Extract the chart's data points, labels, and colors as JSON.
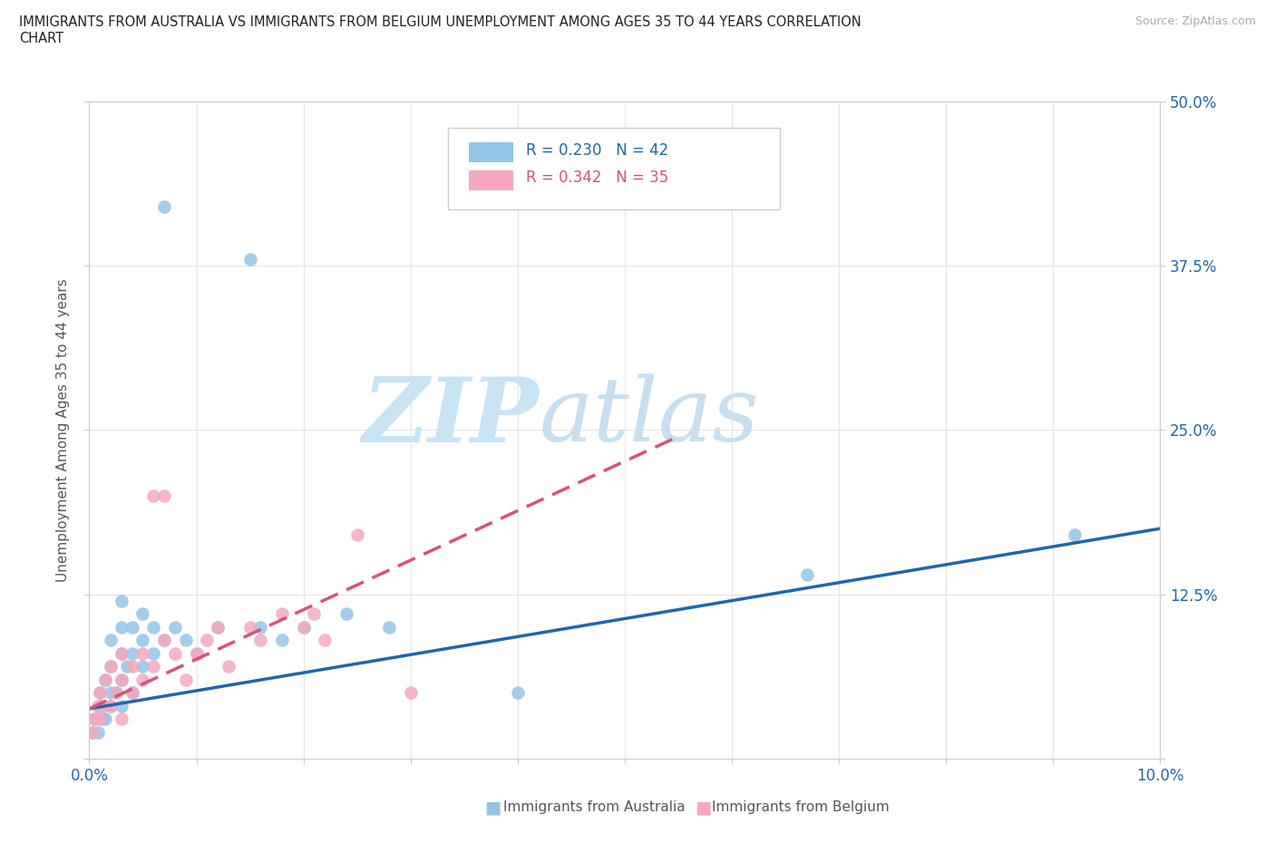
{
  "title_line1": "IMMIGRANTS FROM AUSTRALIA VS IMMIGRANTS FROM BELGIUM UNEMPLOYMENT AMONG AGES 35 TO 44 YEARS CORRELATION",
  "title_line2": "CHART",
  "source_text": "Source: ZipAtlas.com",
  "ylabel": "Unemployment Among Ages 35 to 44 years",
  "xmin": 0.0,
  "xmax": 0.1,
  "ymin": 0.0,
  "ymax": 0.5,
  "r_australia": 0.23,
  "n_australia": 42,
  "r_belgium": 0.342,
  "n_belgium": 35,
  "australia_color": "#92c5e8",
  "belgium_color": "#f5a8bf",
  "trendline_australia_color": "#2166ac",
  "trendline_belgium_color": "#d6537a",
  "watermark_zip_color": "#c8e4f5",
  "watermark_atlas_color": "#c8dff0",
  "background_color": "#ffffff",
  "grid_color": "#e5e5e5",
  "australia_scatter_x": [
    0.0003,
    0.0005,
    0.0008,
    0.001,
    0.001,
    0.0012,
    0.0015,
    0.0015,
    0.002,
    0.002,
    0.002,
    0.002,
    0.0025,
    0.003,
    0.003,
    0.003,
    0.003,
    0.003,
    0.0035,
    0.004,
    0.004,
    0.004,
    0.005,
    0.005,
    0.005,
    0.006,
    0.006,
    0.007,
    0.007,
    0.008,
    0.009,
    0.01,
    0.012,
    0.015,
    0.016,
    0.018,
    0.02,
    0.024,
    0.028,
    0.04,
    0.067,
    0.092
  ],
  "australia_scatter_y": [
    0.02,
    0.03,
    0.02,
    0.04,
    0.05,
    0.03,
    0.03,
    0.06,
    0.04,
    0.05,
    0.07,
    0.09,
    0.05,
    0.04,
    0.06,
    0.08,
    0.1,
    0.12,
    0.07,
    0.05,
    0.08,
    0.1,
    0.07,
    0.09,
    0.11,
    0.08,
    0.1,
    0.09,
    0.42,
    0.1,
    0.09,
    0.08,
    0.1,
    0.38,
    0.1,
    0.09,
    0.1,
    0.11,
    0.1,
    0.05,
    0.14,
    0.17
  ],
  "belgium_scatter_x": [
    0.0003,
    0.0005,
    0.0008,
    0.001,
    0.001,
    0.0012,
    0.0015,
    0.002,
    0.002,
    0.0025,
    0.003,
    0.003,
    0.003,
    0.004,
    0.004,
    0.005,
    0.005,
    0.006,
    0.006,
    0.007,
    0.007,
    0.008,
    0.009,
    0.01,
    0.011,
    0.012,
    0.013,
    0.015,
    0.016,
    0.018,
    0.02,
    0.021,
    0.022,
    0.025,
    0.03
  ],
  "belgium_scatter_y": [
    0.02,
    0.03,
    0.04,
    0.03,
    0.05,
    0.04,
    0.06,
    0.04,
    0.07,
    0.05,
    0.03,
    0.06,
    0.08,
    0.05,
    0.07,
    0.06,
    0.08,
    0.07,
    0.2,
    0.09,
    0.2,
    0.08,
    0.06,
    0.08,
    0.09,
    0.1,
    0.07,
    0.1,
    0.09,
    0.11,
    0.1,
    0.11,
    0.09,
    0.17,
    0.05
  ]
}
